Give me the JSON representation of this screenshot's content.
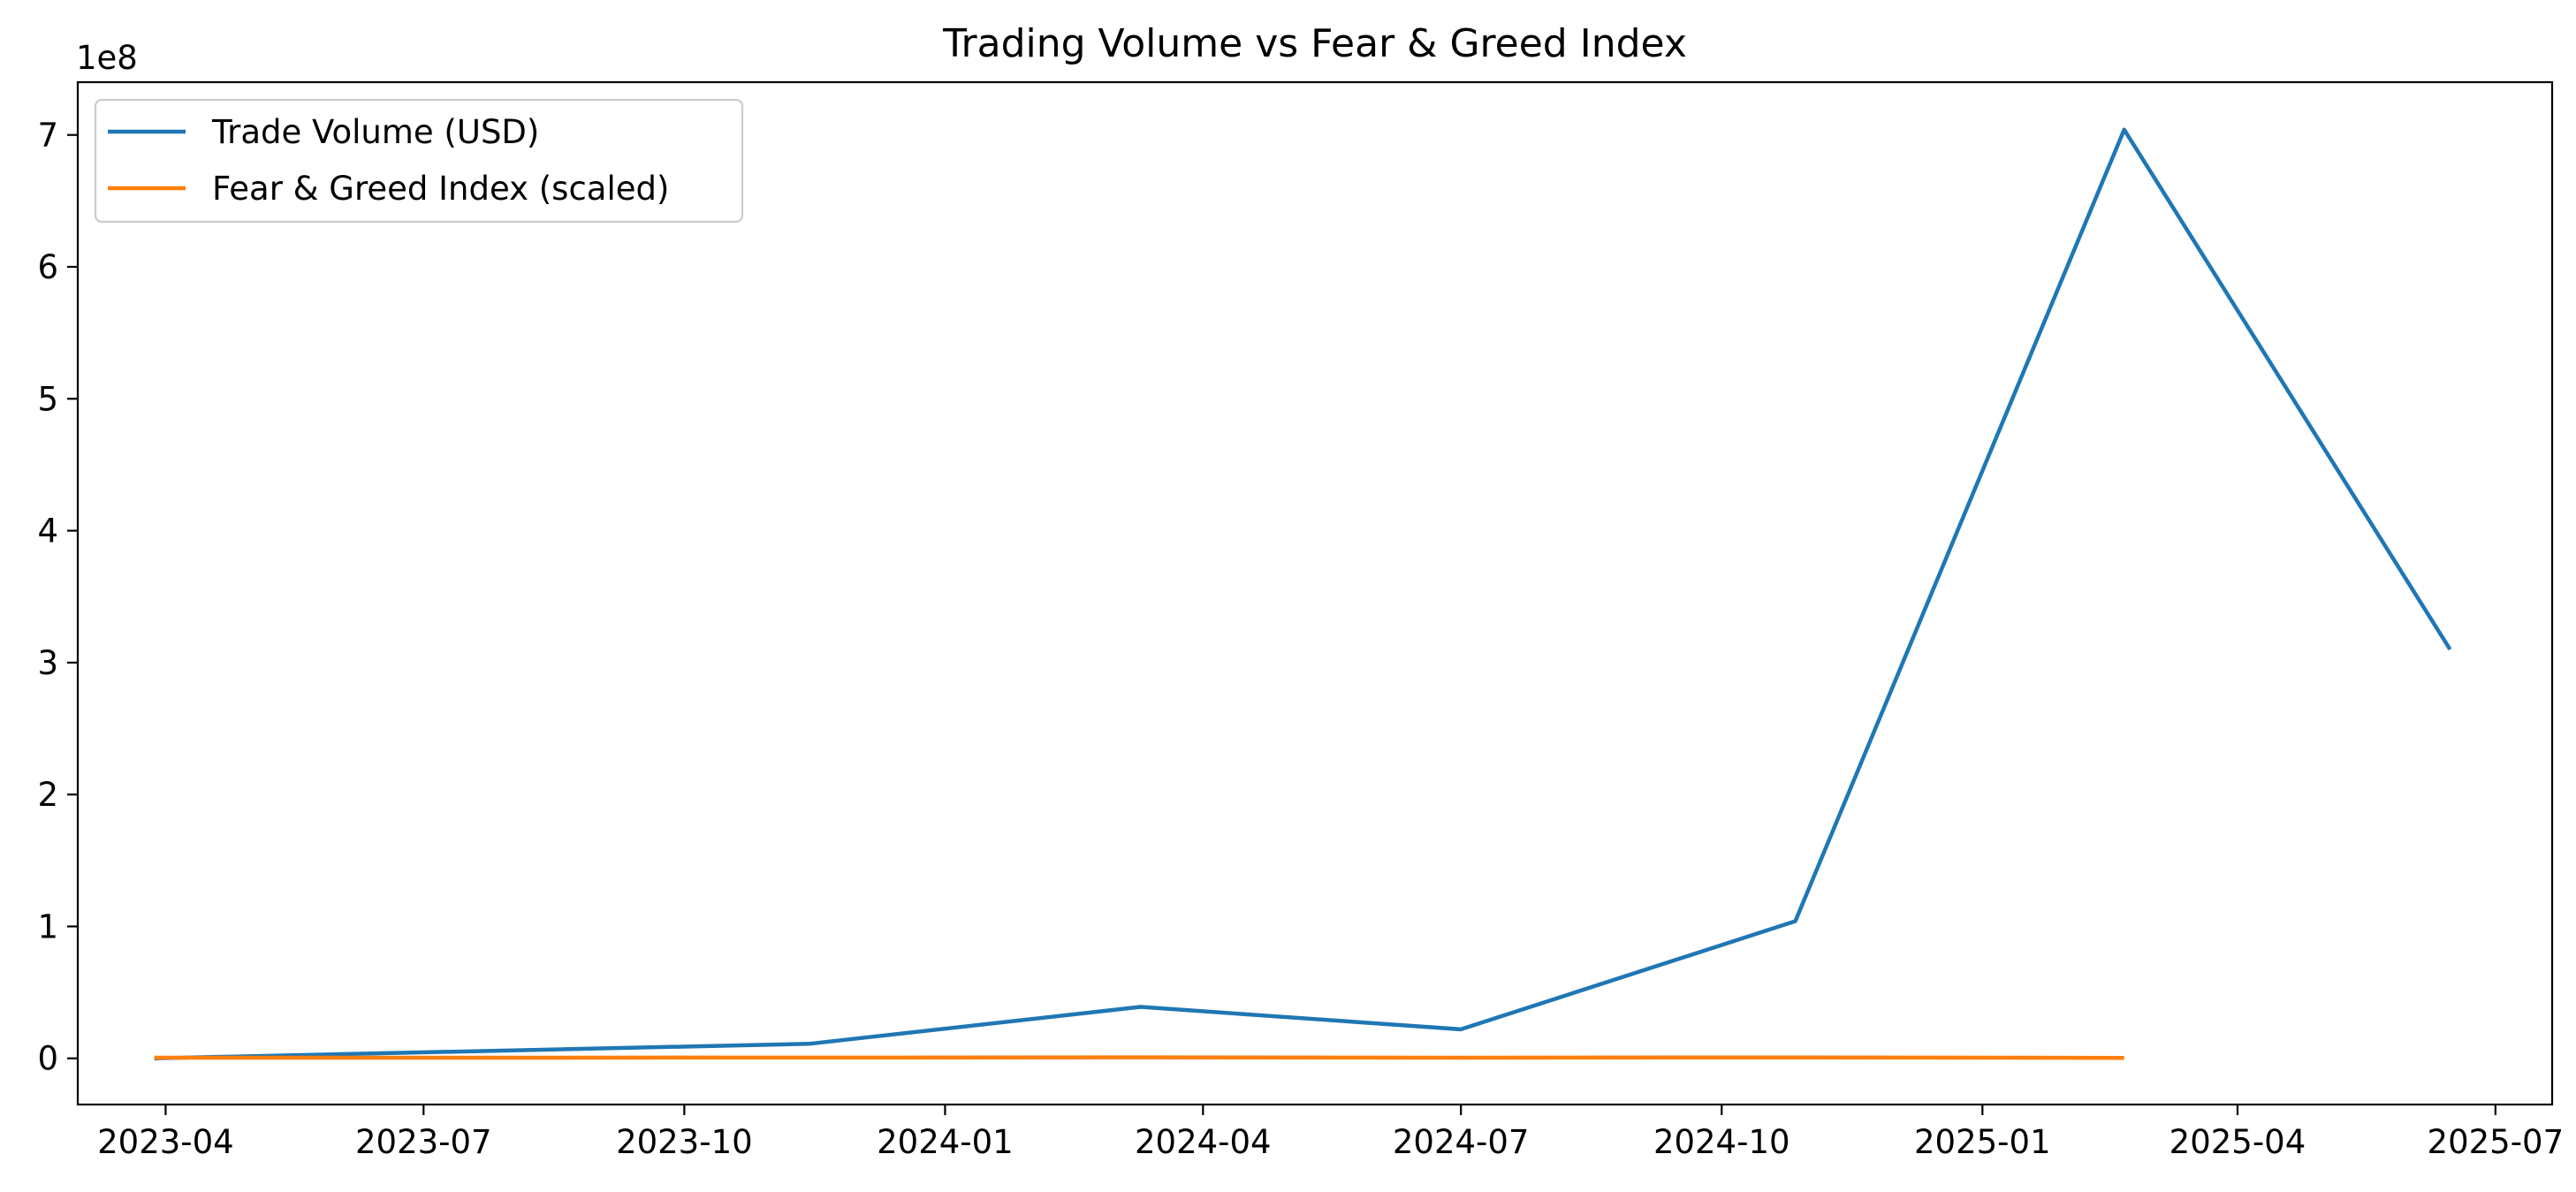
{
  "chart_data": {
    "type": "line",
    "title": "Trading Volume vs Fear & Greed Index",
    "xlabel": "",
    "ylabel": "",
    "y_offset_label": "1e8",
    "y_scale": 100000000,
    "x_range": [
      "2023-03-01",
      "2025-07-21"
    ],
    "ylim": [
      -0.35,
      7.4
    ],
    "yticks": [
      0,
      1,
      2,
      3,
      4,
      5,
      6,
      7
    ],
    "xticks": [
      "2023-04",
      "2023-07",
      "2023-10",
      "2024-01",
      "2024-04",
      "2024-07",
      "2024-10",
      "2025-01",
      "2025-04",
      "2025-07"
    ],
    "grid": false,
    "legend_position": "top-left",
    "series": [
      {
        "name": "Trade Volume (USD)",
        "color": "#1f77b4",
        "x": [
          "2023-03-28",
          "2023-11-14",
          "2024-03-10",
          "2024-07-01",
          "2024-10-27",
          "2025-02-20",
          "2025-06-15"
        ],
        "values": [
          0.0,
          0.11,
          0.39,
          0.22,
          1.04,
          7.04,
          3.1
        ]
      },
      {
        "name": "Fear & Greed Index (scaled)",
        "color": "#ff7f0e",
        "x": [
          "2023-03-28",
          "2023-11-14",
          "2024-03-10",
          "2024-07-01",
          "2024-10-27",
          "2025-02-20"
        ],
        "values": [
          0.005,
          0.006,
          0.008,
          0.005,
          0.007,
          0.004
        ]
      }
    ]
  }
}
